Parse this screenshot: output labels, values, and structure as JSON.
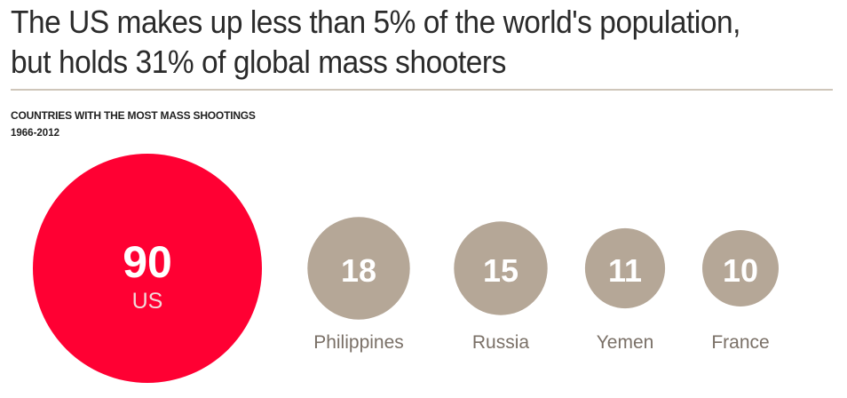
{
  "headline": {
    "line1": "The US makes up less than 5% of the world's population,",
    "line2": "but holds 31% of global mass shooters"
  },
  "chart_data": {
    "type": "bubble",
    "title": "COUNTRIES WITH THE MOST MASS SHOOTINGS",
    "subtitle": "1966-2012",
    "categories": [
      "US",
      "Philippines",
      "Russia",
      "Yemen",
      "France"
    ],
    "values": [
      90,
      18,
      15,
      11,
      10
    ],
    "value_labels": [
      "90",
      "18",
      "15",
      "11",
      "10"
    ],
    "colors": [
      "#ff0033",
      "#b5a797",
      "#b5a797",
      "#b5a797",
      "#b5a797"
    ],
    "label_colors": {
      "inside_highlight": "#f2d9d9",
      "outside": "#7a7067",
      "value": "#ffffff"
    }
  }
}
